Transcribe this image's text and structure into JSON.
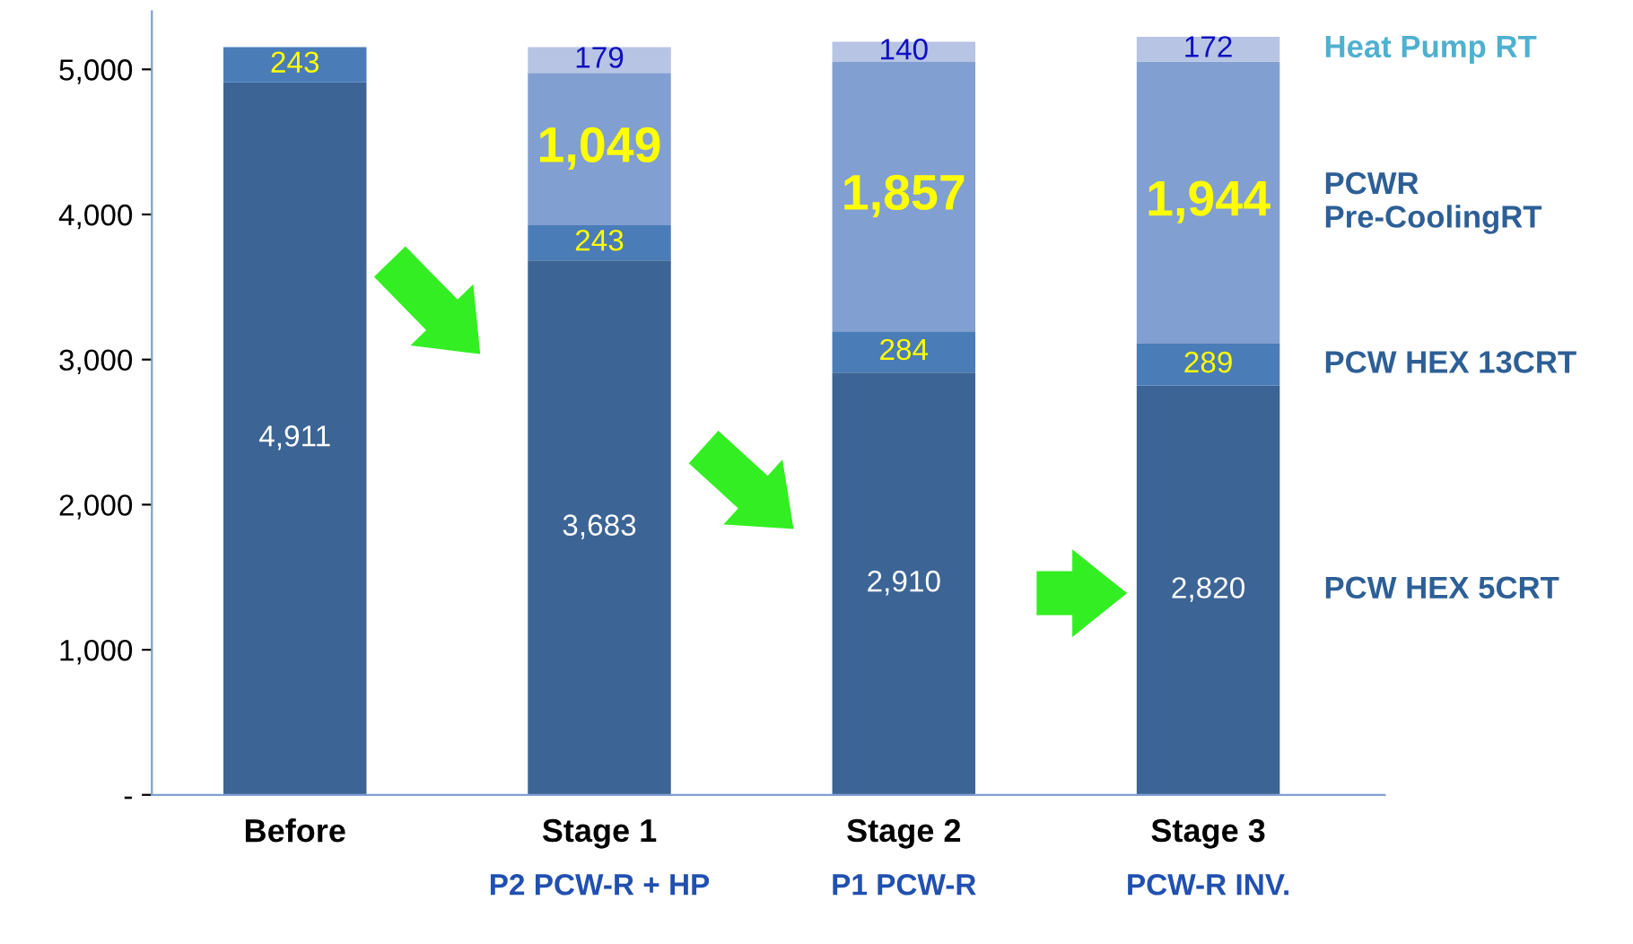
{
  "chart_data": {
    "type": "bar",
    "stacked": true,
    "legend": "right",
    "grid": false,
    "categories": [
      "Before",
      "Stage 1\nP2 PCW-R + HP",
      "Stage 2\nP1 PCW-R",
      "Stage 3\nPCW-R INV."
    ],
    "ylim": [
      0,
      5400
    ],
    "yticks": [
      {
        "value": 0,
        "label": "-"
      },
      {
        "value": 1000,
        "label": "1,000"
      },
      {
        "value": 2000,
        "label": "2,000"
      },
      {
        "value": 3000,
        "label": "3,000"
      },
      {
        "value": 4000,
        "label": "4,000"
      },
      {
        "value": 5000,
        "label": "5,000"
      }
    ],
    "series": [
      {
        "name": "PCW HEX 5CRT",
        "color": "#3c6494",
        "values": [
          4911,
          3683,
          2910,
          2820
        ],
        "value_labels": [
          "4,911",
          "3,683",
          "2,910",
          "2,820"
        ]
      },
      {
        "name": "PCW HEX 13CRT",
        "color": "#4a7cb8",
        "values": [
          243,
          243,
          284,
          289
        ],
        "value_labels": [
          "243",
          "243",
          "284",
          "289"
        ]
      },
      {
        "name": "PCWR\nPre-CoolingRT",
        "color": "#819fd0",
        "values": [
          null,
          1049,
          1857,
          1944
        ],
        "value_labels": [
          null,
          "1,049",
          "1,857",
          "1,944"
        ]
      },
      {
        "name": "Heat Pump RT",
        "color": "#b7c4e4",
        "values": [
          null,
          179,
          140,
          172
        ],
        "value_labels": [
          null,
          "179",
          "140",
          "172"
        ]
      }
    ]
  }
}
